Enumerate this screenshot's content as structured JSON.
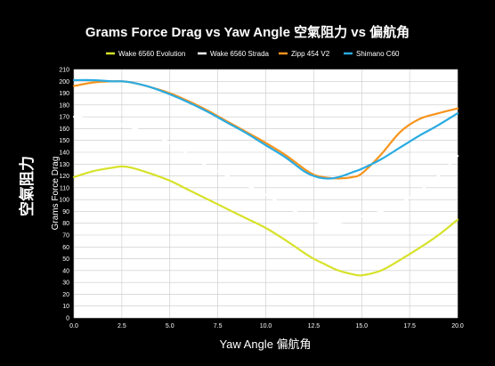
{
  "chart_data": {
    "type": "line",
    "title": "Grams Force Drag vs Yaw Angle  空氣阻力 vs 偏航角",
    "xlabel": "Yaw Angle  偏航角",
    "ylabel": "Grams Force Drag",
    "ylabel_side": "空氣阻力",
    "xlim": [
      0,
      20
    ],
    "ylim": [
      0,
      210
    ],
    "x_ticks": [
      0,
      2.5,
      5,
      7.5,
      10,
      12.5,
      15,
      17.5,
      20
    ],
    "x_tick_labels": [
      "0.0",
      "2.5",
      "5.0",
      "7.5",
      "10.0",
      "12.5",
      "15.0",
      "17.5",
      "20.0"
    ],
    "y_ticks": [
      0,
      10,
      20,
      30,
      40,
      50,
      60,
      70,
      80,
      90,
      100,
      110,
      120,
      130,
      140,
      150,
      160,
      170,
      180,
      190,
      200,
      210
    ],
    "grid": true,
    "legend_position": "top",
    "x": [
      0,
      1,
      2,
      2.5,
      3,
      4,
      5,
      6,
      7,
      8,
      9,
      10,
      11,
      12,
      12.5,
      13,
      13.5,
      14,
      14.5,
      15,
      16,
      17,
      18,
      19,
      20
    ],
    "series": [
      {
        "name": "Wake 6560 Evolution",
        "color": "#d7e22a",
        "values": [
          119,
          124,
          127,
          128,
          127,
          122,
          116,
          108,
          100,
          92,
          84,
          76,
          66,
          55,
          50,
          46,
          42,
          39,
          37,
          36,
          40,
          49,
          59,
          70,
          83
        ]
      },
      {
        "name": "Wake 6560 Strada",
        "color": "#ffffff",
        "values": [
          170,
          168,
          165,
          163,
          161,
          155,
          148,
          138,
          128,
          120,
          112,
          104,
          95,
          86,
          82,
          80,
          80,
          81,
          83,
          86,
          90,
          97,
          107,
          120,
          137
        ]
      },
      {
        "name": "Zipp 454 V2",
        "color": "#f7941d",
        "values": [
          196,
          199,
          200,
          200,
          199,
          195,
          190,
          183,
          175,
          166,
          157,
          148,
          138,
          126,
          121,
          119,
          118,
          118,
          119,
          122,
          138,
          157,
          168,
          173,
          177
        ]
      },
      {
        "name": "Shimano C60",
        "color": "#29abe2",
        "values": [
          201,
          201,
          200,
          200,
          199,
          195,
          189,
          182,
          174,
          165,
          156,
          146,
          136,
          124,
          120,
          118,
          118,
          120,
          123,
          126,
          134,
          144,
          154,
          163,
          173
        ]
      }
    ]
  }
}
